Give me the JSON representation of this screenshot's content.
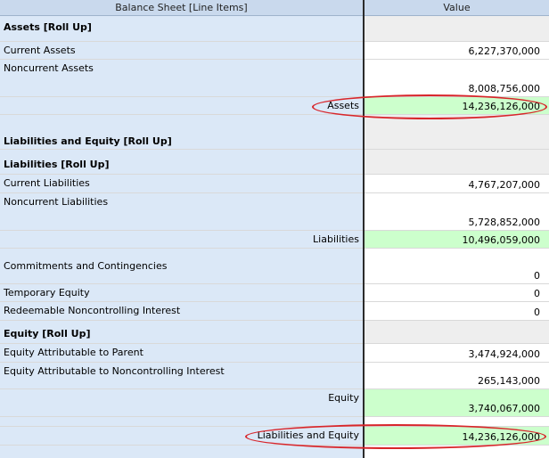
{
  "columns": {
    "label": "Balance Sheet [Line Items]",
    "value": "Value"
  },
  "rows": [
    {
      "label": "Assets [Roll Up]"
    },
    {
      "label": "Current Assets",
      "value": "6,227,370,000"
    },
    {
      "label": "Noncurrent Assets",
      "value": "8,008,756,000"
    },
    {
      "label": "Assets",
      "value": "14,236,126,000"
    },
    {
      "label": "Liabilities and Equity [Roll Up]"
    },
    {
      "label": "Liabilities [Roll Up]"
    },
    {
      "label": "Current Liabilities",
      "value": "4,767,207,000"
    },
    {
      "label": "Noncurrent Liabilities",
      "value": "5,728,852,000"
    },
    {
      "label": "Liabilities",
      "value": "10,496,059,000"
    },
    {
      "label": "Commitments and Contingencies",
      "value": "0"
    },
    {
      "label": "Temporary Equity",
      "value": "0"
    },
    {
      "label": "Redeemable Noncontrolling Interest",
      "value": "0"
    },
    {
      "label": "Equity [Roll Up]"
    },
    {
      "label": "Equity Attributable to Parent",
      "value": "3,474,924,000"
    },
    {
      "label": "Equity Attributable to Noncontrolling Interest",
      "value": "265,143,000"
    },
    {
      "label": "Equity",
      "value": "3,740,067,000"
    },
    {
      "label": "Liabilities and Equity",
      "value": "14,236,126,000"
    }
  ],
  "colors": {
    "label_bg": "#dbe8f7",
    "header_bg": "#c9d9ed",
    "total_bg": "#ccffcc",
    "highlight_ring": "#d8262b"
  }
}
